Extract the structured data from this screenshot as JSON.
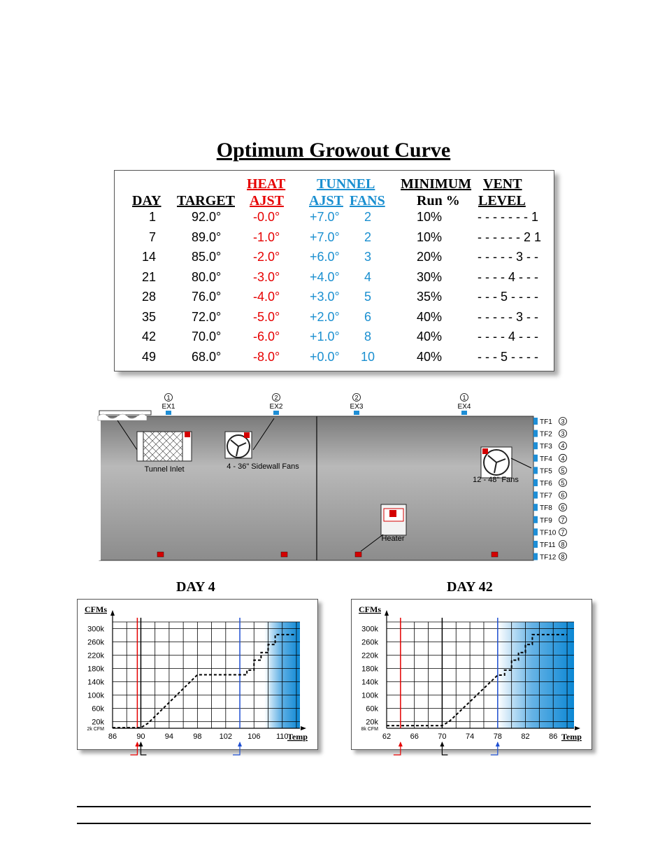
{
  "title": "Optimum Growout Curve",
  "table": {
    "headers": {
      "day": "DAY",
      "target": "TARGET",
      "heat_top": "HEAT",
      "heat_bottom": "AJST",
      "tunnel_top": "TUNNEL",
      "tunnel_ajst": "AJST",
      "tunnel_fans": "FANS",
      "min_top": "MINIMUM",
      "min_bottom": "Run %",
      "vent_top": "VENT",
      "vent_bottom": "LEVEL"
    },
    "rows": [
      {
        "day": "1",
        "target": "92.0°",
        "heat": "-0.0°",
        "tunnel": "+7.0°",
        "fans": "2",
        "min": "10%",
        "vent": "- - - - - - - 1"
      },
      {
        "day": "7",
        "target": "89.0°",
        "heat": "-1.0°",
        "tunnel": "+7.0°",
        "fans": "2",
        "min": "10%",
        "vent": "- - - - - - 2 1"
      },
      {
        "day": "14",
        "target": "85.0°",
        "heat": "-2.0°",
        "tunnel": "+6.0°",
        "fans": "3",
        "min": "20%",
        "vent": "- - - - - 3 - -"
      },
      {
        "day": "21",
        "target": "80.0°",
        "heat": "-3.0°",
        "tunnel": "+4.0°",
        "fans": "4",
        "min": "30%",
        "vent": "- - - - 4 - - -"
      },
      {
        "day": "28",
        "target": "76.0°",
        "heat": "-4.0°",
        "tunnel": "+3.0°",
        "fans": "5",
        "min": "35%",
        "vent": "- - - 5 - - - -"
      },
      {
        "day": "35",
        "target": "72.0°",
        "heat": "-5.0°",
        "tunnel": "+2.0°",
        "fans": "6",
        "min": "40%",
        "vent": "- - - - - 3 - -"
      },
      {
        "day": "42",
        "target": "70.0°",
        "heat": "-6.0°",
        "tunnel": "+1.0°",
        "fans": "8",
        "min": "40%",
        "vent": "- - - - 4 - - -"
      },
      {
        "day": "49",
        "target": "68.0°",
        "heat": "-8.0°",
        "tunnel": "+0.0°",
        "fans": "10",
        "min": "40%",
        "vent": "- - - 5 - - - -"
      }
    ]
  },
  "barn": {
    "exhaust_fans": [
      {
        "label": "EX1",
        "num": "1"
      },
      {
        "label": "EX2",
        "num": "2"
      },
      {
        "label": "EX3",
        "num": "2"
      },
      {
        "label": "EX4",
        "num": "1"
      }
    ],
    "tunnel_fans": [
      {
        "label": "TF1",
        "num": "3"
      },
      {
        "label": "TF2",
        "num": "3"
      },
      {
        "label": "TF3",
        "num": "4"
      },
      {
        "label": "TF4",
        "num": "4"
      },
      {
        "label": "TF5",
        "num": "5"
      },
      {
        "label": "TF6",
        "num": "5"
      },
      {
        "label": "TF7",
        "num": "6"
      },
      {
        "label": "TF8",
        "num": "6"
      },
      {
        "label": "TF9",
        "num": "7"
      },
      {
        "label": "TF10",
        "num": "7"
      },
      {
        "label": "TF11",
        "num": "8"
      },
      {
        "label": "TF12",
        "num": "8"
      }
    ],
    "tunnel_inlet_label": "Tunnel Inlet",
    "sidewall_fans_label": "4 - 36\" Sidewall Fans",
    "tunnel_fans_label": "12 - 48\" Fans",
    "heater_label": "Heater",
    "colors": {
      "fan_marker": "#1e8ed6",
      "heater_marker": "#d40000",
      "barn_fill": "#9a9a9a"
    }
  },
  "chart_data": [
    {
      "type": "line",
      "title": "DAY 4",
      "ylabel": "CFMs",
      "xlabel": "Temp",
      "x_ticks": [
        86,
        90,
        94,
        98,
        102,
        106,
        110
      ],
      "xlim": [
        86,
        112.5
      ],
      "y_ticks": [
        "300k",
        "260k",
        "220k",
        "180k",
        "140k",
        "100k",
        "60k",
        "20k"
      ],
      "y_tick_values": [
        300000,
        260000,
        220000,
        180000,
        140000,
        100000,
        60000,
        20000
      ],
      "ylim": [
        0,
        320000
      ],
      "min_label": "2k CFM",
      "min_value": 2000,
      "series": [
        {
          "x": [
            86,
            89.5,
            90,
            91,
            98,
            100,
            104.5,
            105,
            105,
            106,
            106,
            107,
            107,
            108,
            108,
            109,
            109,
            112
          ],
          "y": [
            2000,
            2000,
            2000,
            15000,
            161000,
            161000,
            161000,
            161000,
            175000,
            175000,
            205000,
            205000,
            228000,
            228000,
            252000,
            252000,
            282000,
            282000
          ]
        }
      ],
      "markers": [
        {
          "label": "heat",
          "x": 89.5,
          "color": "#e60000"
        },
        {
          "label": "target",
          "x": 90,
          "color": "#000000"
        },
        {
          "label": "tunnel",
          "x": 104,
          "color": "#1f4fd1"
        }
      ],
      "tunnel_zone_start": 107.5
    },
    {
      "type": "line",
      "title": "DAY 42",
      "ylabel": "CFMs",
      "xlabel": "Temp",
      "x_ticks": [
        62,
        66,
        70,
        74,
        78,
        82,
        86
      ],
      "xlim": [
        62,
        89
      ],
      "y_ticks": [
        "300k",
        "260k",
        "220k",
        "180k",
        "140k",
        "100k",
        "60k",
        "20k"
      ],
      "y_tick_values": [
        300000,
        260000,
        220000,
        180000,
        140000,
        100000,
        60000,
        20000
      ],
      "ylim": [
        0,
        320000
      ],
      "min_label": "8k CFM",
      "min_value": 8000,
      "series": [
        {
          "x": [
            62,
            70,
            71,
            78,
            79,
            79,
            80,
            80,
            81,
            81,
            82,
            82,
            83,
            83,
            88
          ],
          "y": [
            8000,
            8000,
            20000,
            160000,
            160000,
            175000,
            175000,
            205000,
            205000,
            228000,
            228000,
            252000,
            252000,
            282000,
            282000
          ]
        }
      ],
      "markers": [
        {
          "label": "heat",
          "x": 64,
          "color": "#e60000"
        },
        {
          "label": "target",
          "x": 70,
          "color": "#000000"
        },
        {
          "label": "tunnel",
          "x": 78,
          "color": "#1f4fd1"
        }
      ],
      "tunnel_zone_start": 78
    }
  ]
}
